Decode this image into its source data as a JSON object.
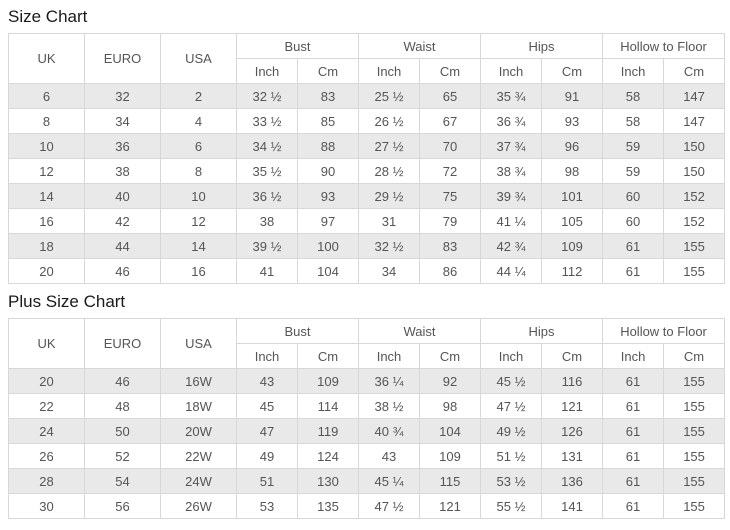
{
  "colors": {
    "background": "#ffffff",
    "row_stripe": "#e9e9e9",
    "table_border": "#d8d8d8",
    "cell_text": "#555555",
    "title_text": "#1a1a1a"
  },
  "units": {
    "inch": "Inch",
    "cm": "Cm"
  },
  "tables": [
    {
      "title": "Size Chart",
      "size_columns": [
        "UK",
        "EURO",
        "USA"
      ],
      "measure_groups": [
        "Bust",
        "Waist",
        "Hips",
        "Hollow to Floor"
      ],
      "rows": [
        [
          "6",
          "32",
          "2",
          "32 ½",
          "83",
          "25 ½",
          "65",
          "35 ¾",
          "91",
          "58",
          "147"
        ],
        [
          "8",
          "34",
          "4",
          "33 ½",
          "85",
          "26 ½",
          "67",
          "36 ¾",
          "93",
          "58",
          "147"
        ],
        [
          "10",
          "36",
          "6",
          "34 ½",
          "88",
          "27 ½",
          "70",
          "37 ¾",
          "96",
          "59",
          "150"
        ],
        [
          "12",
          "38",
          "8",
          "35 ½",
          "90",
          "28 ½",
          "72",
          "38 ¾",
          "98",
          "59",
          "150"
        ],
        [
          "14",
          "40",
          "10",
          "36 ½",
          "93",
          "29 ½",
          "75",
          "39 ¾",
          "101",
          "60",
          "152"
        ],
        [
          "16",
          "42",
          "12",
          "38",
          "97",
          "31",
          "79",
          "41 ¼",
          "105",
          "60",
          "152"
        ],
        [
          "18",
          "44",
          "14",
          "39 ½",
          "100",
          "32 ½",
          "83",
          "42 ¾",
          "109",
          "61",
          "155"
        ],
        [
          "20",
          "46",
          "16",
          "41",
          "104",
          "34",
          "86",
          "44 ¼",
          "112",
          "61",
          "155"
        ]
      ]
    },
    {
      "title": "Plus Size Chart",
      "size_columns": [
        "UK",
        "EURO",
        "USA"
      ],
      "measure_groups": [
        "Bust",
        "Waist",
        "Hips",
        "Hollow to Floor"
      ],
      "rows": [
        [
          "20",
          "46",
          "16W",
          "43",
          "109",
          "36 ¼",
          "92",
          "45 ½",
          "116",
          "61",
          "155"
        ],
        [
          "22",
          "48",
          "18W",
          "45",
          "114",
          "38 ½",
          "98",
          "47 ½",
          "121",
          "61",
          "155"
        ],
        [
          "24",
          "50",
          "20W",
          "47",
          "119",
          "40 ¾",
          "104",
          "49 ½",
          "126",
          "61",
          "155"
        ],
        [
          "26",
          "52",
          "22W",
          "49",
          "124",
          "43",
          "109",
          "51 ½",
          "131",
          "61",
          "155"
        ],
        [
          "28",
          "54",
          "24W",
          "51",
          "130",
          "45 ¼",
          "115",
          "53 ½",
          "136",
          "61",
          "155"
        ],
        [
          "30",
          "56",
          "26W",
          "53",
          "135",
          "47 ½",
          "121",
          "55 ½",
          "141",
          "61",
          "155"
        ]
      ]
    }
  ]
}
